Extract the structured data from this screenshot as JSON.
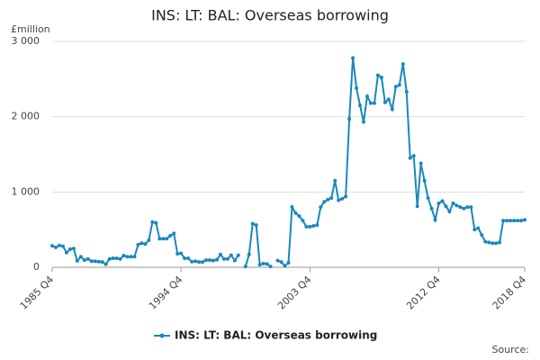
{
  "chart_data": {
    "type": "line",
    "title": "INS: LT: BAL: Overseas borrowing",
    "y_label": "£million",
    "source": "Source:",
    "categories": [
      "1985 Q4",
      null,
      null,
      null,
      null,
      null,
      null,
      null,
      null,
      null,
      null,
      null,
      null,
      null,
      null,
      null,
      null,
      null,
      null,
      null,
      null,
      null,
      null,
      null,
      null,
      null,
      null,
      null,
      null,
      null,
      null,
      null,
      null,
      null,
      null,
      null,
      "1994 Q4",
      null,
      null,
      null,
      null,
      null,
      null,
      null,
      null,
      null,
      null,
      null,
      null,
      null,
      null,
      null,
      null,
      null,
      null,
      null,
      null,
      null,
      null,
      null,
      null,
      null,
      null,
      null,
      null,
      null,
      null,
      null,
      null,
      null,
      null,
      null,
      "2003 Q4",
      null,
      null,
      null,
      null,
      null,
      null,
      null,
      null,
      null,
      null,
      null,
      null,
      null,
      null,
      null,
      null,
      null,
      null,
      null,
      null,
      null,
      null,
      null,
      null,
      null,
      null,
      null,
      null,
      null,
      null,
      null,
      null,
      null,
      null,
      null,
      "2012 Q4",
      null,
      null,
      null,
      null,
      null,
      null,
      null,
      null,
      null,
      null,
      null,
      null,
      null,
      null,
      null,
      null,
      null,
      null,
      null,
      null,
      null,
      null,
      null,
      "2018 Q4"
    ],
    "series": [
      {
        "name": "INS: LT: BAL: Overseas borrowing",
        "color": "#1a87bd",
        "values": [
          285,
          265,
          290,
          280,
          195,
          240,
          250,
          85,
          140,
          95,
          110,
          80,
          80,
          75,
          70,
          40,
          110,
          120,
          120,
          110,
          155,
          140,
          140,
          140,
          300,
          320,
          310,
          360,
          600,
          590,
          380,
          380,
          380,
          420,
          450,
          180,
          185,
          120,
          120,
          75,
          80,
          70,
          70,
          95,
          95,
          90,
          100,
          170,
          110,
          110,
          160,
          90,
          160,
          null,
          10,
          170,
          580,
          560,
          35,
          50,
          45,
          10,
          null,
          90,
          70,
          20,
          60,
          800,
          720,
          680,
          620,
          540,
          540,
          550,
          560,
          800,
          870,
          900,
          920,
          1150,
          890,
          910,
          940,
          1970,
          2780,
          2380,
          2150,
          1930,
          2270,
          2180,
          2180,
          2550,
          2520,
          2190,
          2230,
          2100,
          2400,
          2420,
          2700,
          2330,
          1450,
          1480,
          810,
          1380,
          1150,
          920,
          780,
          630,
          850,
          880,
          810,
          740,
          850,
          820,
          800,
          780,
          800,
          800,
          500,
          520,
          430,
          340,
          330,
          320,
          320,
          330,
          620,
          620,
          620,
          620,
          620,
          620,
          630
        ]
      }
    ],
    "ylim": [
      0,
      3000
    ],
    "yticks": [
      0,
      {
        "value": 1000,
        "label": "1 000"
      },
      {
        "value": 2000,
        "label": "2 000"
      },
      {
        "value": 3000,
        "label": "3 000"
      }
    ],
    "grid": true
  }
}
